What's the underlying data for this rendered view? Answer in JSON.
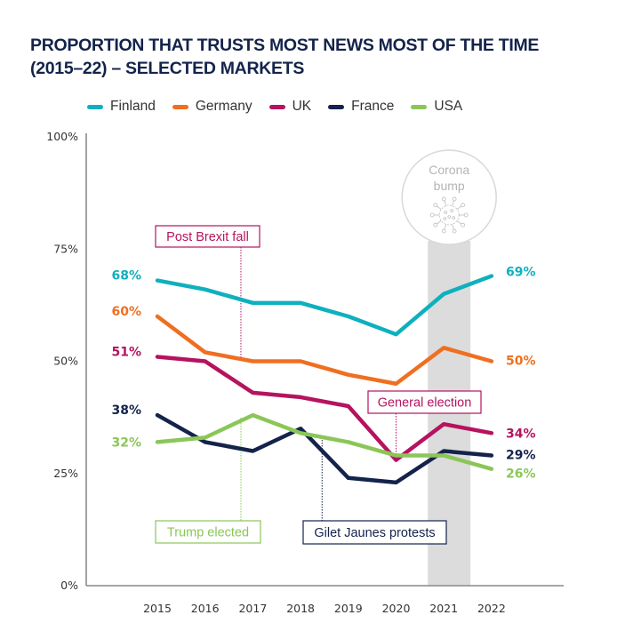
{
  "chart_data": {
    "type": "line",
    "title": "PROPORTION THAT TRUSTS MOST NEWS MOST OF THE TIME (2015–22) – SELECTED MARKETS",
    "title_lines": [
      "PROPORTION THAT TRUSTS MOST NEWS MOST OF THE TIME",
      "(2015–22) – SELECTED MARKETS"
    ],
    "xlabel": "",
    "ylabel": "",
    "x": [
      "2015",
      "2016",
      "2017",
      "2018",
      "2019",
      "2020",
      "2021",
      "2022"
    ],
    "ylim": [
      0,
      100
    ],
    "yticks": [
      0,
      25,
      50,
      75,
      100
    ],
    "ytick_labels": [
      "0%",
      "25%",
      "50%",
      "75%",
      "100%"
    ],
    "grid": false,
    "legend_position": "top",
    "series": [
      {
        "name": "Finland",
        "color": "#0fb0be",
        "values": [
          68,
          66,
          63,
          63,
          60,
          56,
          65,
          69
        ],
        "start_label": "68%",
        "end_label": "69%"
      },
      {
        "name": "Germany",
        "color": "#ef6f21",
        "values": [
          60,
          52,
          50,
          50,
          47,
          45,
          53,
          50
        ],
        "start_label": "60%",
        "end_label": "50%"
      },
      {
        "name": "UK",
        "color": "#b5135f",
        "values": [
          51,
          50,
          43,
          42,
          40,
          28,
          36,
          34
        ],
        "start_label": "51%",
        "end_label": "34%"
      },
      {
        "name": "France",
        "color": "#14234b",
        "values": [
          38,
          32,
          30,
          35,
          24,
          23,
          30,
          29
        ],
        "start_label": "38%",
        "end_label": "29%"
      },
      {
        "name": "USA",
        "color": "#8bc658",
        "values": [
          32,
          33,
          38,
          34,
          32,
          29,
          29,
          26
        ],
        "start_label": "32%",
        "end_label": "26%"
      }
    ],
    "annotations": [
      {
        "text": "Post Brexit fall",
        "series": "UK",
        "year_position": 2016.75,
        "color": "#b5135f",
        "placement": "above"
      },
      {
        "text": "Trump elected",
        "series": "USA",
        "year_position": 2016.75,
        "color": "#8bc658",
        "placement": "below"
      },
      {
        "text": "Gilet Jaunes protests",
        "series": "France",
        "year_position": 2018.45,
        "color": "#14234b",
        "placement": "below"
      },
      {
        "text": "General election",
        "series": "UK",
        "year_position": 2020,
        "color": "#b5135f",
        "placement": "above"
      }
    ],
    "highlight_band": {
      "label_lines": [
        "Corona",
        "bump"
      ],
      "year": "2021",
      "color": "#dcdcdc",
      "icon": "virus-icon"
    }
  }
}
